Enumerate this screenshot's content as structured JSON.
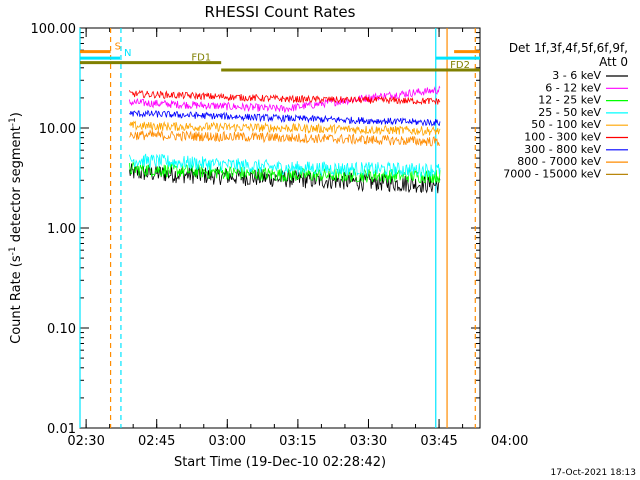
{
  "chart_data": {
    "type": "line",
    "title": "RHESSI Count Rates",
    "xlabel": "Start Time (19-Dec-10 02:28:42)",
    "ylabel": "Count Rate (s",
    "ylabel_sup": "-1",
    "ylabel_tail": " detector segment",
    "ylabel_end": ")",
    "xrange_minutes": [
      0,
      85
    ],
    "x_origin_time": "02:28:42",
    "yscale": "log",
    "ylim": [
      0.01,
      100
    ],
    "y_ticks": [
      {
        "value": 100,
        "label": "100.00"
      },
      {
        "value": 10,
        "label": "10.00"
      },
      {
        "value": 1,
        "label": "1.00"
      },
      {
        "value": 0.1,
        "label": "0.10"
      },
      {
        "value": 0.01,
        "label": "0.01"
      }
    ],
    "x_ticks": [
      {
        "minute": 1.3,
        "label": "02:30"
      },
      {
        "minute": 16.3,
        "label": "02:45"
      },
      {
        "minute": 31.3,
        "label": "03:00"
      },
      {
        "minute": 46.3,
        "label": "03:15"
      },
      {
        "minute": 61.3,
        "label": "03:30"
      },
      {
        "minute": 76.3,
        "label": "03:45"
      },
      {
        "minute": 91.3,
        "label": "04:00"
      }
    ],
    "data_window_minutes": [
      10.5,
      76.5
    ],
    "legend": {
      "header1": "Det 1f,3f,4f,5f,6f,9f,",
      "header2": "Att 0",
      "position": "right"
    },
    "series": [
      {
        "name": "3 - 6 keV",
        "color": "#000000",
        "start": 3.6,
        "mid": 3.1,
        "end": 2.7,
        "noise": 0.09
      },
      {
        "name": "6 - 12 keV",
        "color": "#ff00ff",
        "start": 18.0,
        "mid": 15.5,
        "end": 24.0,
        "noise": 0.04
      },
      {
        "name": "12 - 25 keV",
        "color": "#00ff00",
        "start": 3.9,
        "mid": 3.4,
        "end": 3.3,
        "noise": 0.07
      },
      {
        "name": "25 - 50 keV",
        "color": "#00ffff",
        "start": 4.8,
        "mid": 4.0,
        "end": 3.8,
        "noise": 0.07
      },
      {
        "name": "50 - 100 keV",
        "color": "#ffa500",
        "start": 10.5,
        "mid": 10.0,
        "end": 9.3,
        "noise": 0.045
      },
      {
        "name": "100 - 300 keV",
        "color": "#ff0000",
        "start": 22.0,
        "mid": 19.5,
        "end": 18.5,
        "noise": 0.035
      },
      {
        "name": "300 - 800 keV",
        "color": "#0000ff",
        "start": 14.0,
        "mid": 12.5,
        "end": 11.3,
        "noise": 0.035
      },
      {
        "name": "800 - 7000 keV",
        "color": "#ff8c00",
        "start": 8.5,
        "mid": 8.0,
        "end": 7.3,
        "noise": 0.05
      },
      {
        "name": "7000 - 15000 keV",
        "color": "#b8860b",
        "start": 0,
        "mid": 0,
        "end": 0,
        "noise": 0
      }
    ],
    "annotations": [
      {
        "label": "S",
        "color": "#ff8c00",
        "start_min": 0,
        "end_min": 6.5,
        "value": 58
      },
      {
        "label": "N",
        "color": "#00e5ff",
        "start_min": 0,
        "end_min": 8.5,
        "value": 50
      },
      {
        "label": "FD1",
        "color": "#808000",
        "start_min": 0,
        "end_min": 30.0,
        "value": 45
      },
      {
        "label": "FD2",
        "color": "#808000",
        "start_min": 30.0,
        "end_min": 85.0,
        "value": 38
      }
    ],
    "right_markers": [
      {
        "label": "S",
        "color": "#ff8c00",
        "start_min": 79.5,
        "end_min": 85.0,
        "value": 58
      },
      {
        "label": "N",
        "color": "#00e5ff",
        "start_min": 75.6,
        "end_min": 85.0,
        "value": 50
      }
    ],
    "vertical_lines": [
      {
        "minute": 0,
        "color": "#00e5ff",
        "style": "solid"
      },
      {
        "minute": 6.5,
        "color": "#ff8c00",
        "style": "dashed"
      },
      {
        "minute": 8.7,
        "color": "#00e5ff",
        "style": "dashed"
      },
      {
        "minute": 75.6,
        "color": "#00e5ff",
        "style": "solid"
      },
      {
        "minute": 78.0,
        "color": "#ff8c00",
        "style": "solid"
      },
      {
        "minute": 84.0,
        "color": "#ff8c00",
        "style": "dashed"
      }
    ]
  },
  "timestamp": "17-Oct-2021 18:13"
}
